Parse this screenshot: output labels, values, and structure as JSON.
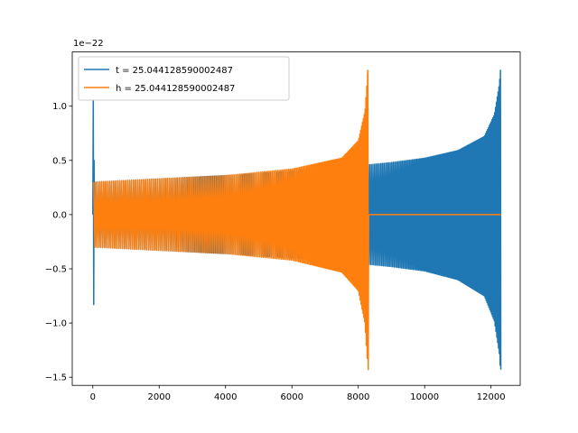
{
  "chart_data": {
    "type": "line",
    "title": "",
    "xlabel": "",
    "ylabel": "",
    "y_offset_label": "1e−22",
    "xlim": [
      -620,
      12880
    ],
    "ylim": [
      -1.575,
      1.5
    ],
    "x_ticks": [
      0,
      2000,
      4000,
      6000,
      8000,
      10000,
      12000
    ],
    "x_tick_labels": [
      "0",
      "2000",
      "4000",
      "6000",
      "8000",
      "10000",
      "12000"
    ],
    "y_ticks": [
      -1.5,
      -1.0,
      -0.5,
      0.0,
      0.5,
      1.0
    ],
    "y_tick_labels": [
      "−1.5",
      "−1.0",
      "−0.5",
      "0.0",
      "0.5",
      "1.0"
    ],
    "grid": false,
    "legend_position": "upper-left",
    "series": [
      {
        "name": "t = 25.044128590002487",
        "color": "#1f77b4",
        "description": "chirp: early transient spike near x=0 (+1.05/-0.83), steady oscillation from x≈30 to x≈12285 growing to peak +1.33/-1.43",
        "spike": {
          "x_range": [
            0,
            30
          ],
          "max": 1.05,
          "min": -0.83
        },
        "envelope": [
          {
            "x": 30,
            "max": 0.3,
            "min": -0.3
          },
          {
            "x": 2000,
            "max": 0.33,
            "min": -0.33
          },
          {
            "x": 4000,
            "max": 0.36,
            "min": -0.36
          },
          {
            "x": 6000,
            "max": 0.4,
            "min": -0.4
          },
          {
            "x": 8000,
            "max": 0.45,
            "min": -0.45
          },
          {
            "x": 9000,
            "max": 0.48,
            "min": -0.48
          },
          {
            "x": 10000,
            "max": 0.52,
            "min": -0.52
          },
          {
            "x": 11000,
            "max": 0.59,
            "min": -0.6
          },
          {
            "x": 11800,
            "max": 0.72,
            "min": -0.75
          },
          {
            "x": 12100,
            "max": 0.92,
            "min": -0.98
          },
          {
            "x": 12250,
            "max": 1.2,
            "min": -1.28
          },
          {
            "x": 12285,
            "max": 1.33,
            "min": -1.43
          }
        ]
      },
      {
        "name": "h = 25.044128590002487",
        "color": "#ff7f0e",
        "description": "chirp from x≈30 to x≈8290 growing to peak +1.33/-1.43, then flat zero line to x≈12300",
        "envelope": [
          {
            "x": 30,
            "max": 0.3,
            "min": -0.3
          },
          {
            "x": 2000,
            "max": 0.33,
            "min": -0.33
          },
          {
            "x": 4000,
            "max": 0.36,
            "min": -0.36
          },
          {
            "x": 6000,
            "max": 0.42,
            "min": -0.42
          },
          {
            "x": 7500,
            "max": 0.52,
            "min": -0.53
          },
          {
            "x": 8000,
            "max": 0.68,
            "min": -0.7
          },
          {
            "x": 8200,
            "max": 0.95,
            "min": -1.0
          },
          {
            "x": 8290,
            "max": 1.33,
            "min": -1.43
          }
        ],
        "flat_after": {
          "x_range": [
            8290,
            12300
          ],
          "value": 0.0
        }
      }
    ]
  }
}
